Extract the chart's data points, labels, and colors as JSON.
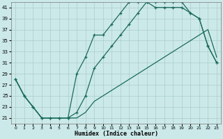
{
  "xlabel": "Humidex (Indice chaleur)",
  "xlim": [
    -0.5,
    23.5
  ],
  "ylim": [
    20,
    42
  ],
  "xticks": [
    0,
    1,
    2,
    3,
    4,
    5,
    6,
    7,
    8,
    9,
    10,
    11,
    12,
    13,
    14,
    15,
    16,
    17,
    18,
    19,
    20,
    21,
    22,
    23
  ],
  "yticks": [
    21,
    23,
    25,
    27,
    29,
    31,
    33,
    35,
    37,
    39,
    41
  ],
  "bg_color": "#cce9e9",
  "grid_color": "#aacccc",
  "line_color": "#1a6b5a",
  "curve1_x": [
    0,
    1,
    2,
    3,
    4,
    5,
    6,
    7,
    8,
    9,
    10,
    11,
    12,
    13,
    14,
    15,
    16,
    17,
    18,
    19,
    20,
    21,
    22,
    23
  ],
  "curve1_y": [
    28,
    25,
    23,
    21,
    21,
    21,
    21,
    21,
    22,
    24,
    25,
    26,
    27,
    28,
    29,
    30,
    31,
    32,
    33,
    34,
    35,
    36,
    37,
    32
  ],
  "curve2_x": [
    0,
    1,
    2,
    3,
    4,
    5,
    6,
    7,
    8,
    9,
    10,
    11,
    12,
    13,
    14,
    15,
    16,
    17,
    18,
    19,
    20,
    21,
    22,
    23
  ],
  "curve2_y": [
    28,
    25,
    23,
    21,
    21,
    21,
    21,
    22,
    25,
    30,
    32,
    34,
    36,
    38,
    40,
    42,
    41,
    41,
    41,
    41,
    40,
    39,
    34,
    31
  ],
  "curve3_x": [
    0,
    1,
    2,
    3,
    4,
    5,
    6,
    7,
    8,
    9,
    10,
    11,
    12,
    13,
    14,
    15,
    16,
    17,
    18,
    19,
    20,
    21,
    22,
    23
  ],
  "curve3_y": [
    28,
    25,
    23,
    21,
    21,
    21,
    21,
    29,
    32,
    36,
    36,
    38,
    40,
    42,
    42,
    42,
    42,
    42,
    42,
    42,
    40,
    39,
    34,
    31
  ]
}
